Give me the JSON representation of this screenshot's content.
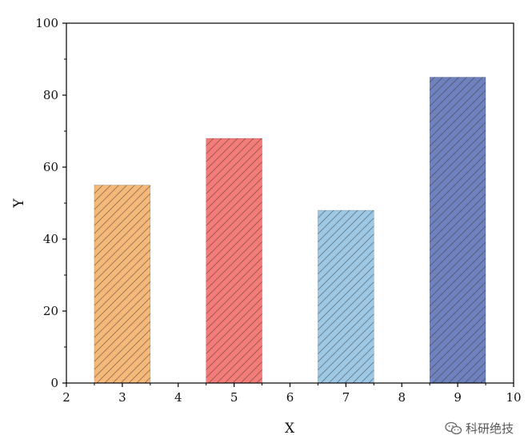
{
  "chart_data": {
    "type": "bar",
    "x": [
      3,
      5,
      7,
      9
    ],
    "values": [
      55,
      68,
      48,
      85
    ],
    "colors": [
      "#F5B97A",
      "#F47C78",
      "#9DC9E6",
      "#6E82C0"
    ],
    "hatch": "diagonal",
    "bar_width": 1,
    "xlabel": "X",
    "ylabel": "Y",
    "xlim": [
      2,
      10
    ],
    "ylim": [
      0,
      100
    ],
    "xticks": [
      2,
      3,
      4,
      5,
      6,
      7,
      8,
      9,
      10
    ],
    "yticks": [
      0,
      20,
      40,
      60,
      80,
      100
    ],
    "grid": false
  },
  "watermark": {
    "text": "科研绝技",
    "icon": "wechat-icon"
  }
}
